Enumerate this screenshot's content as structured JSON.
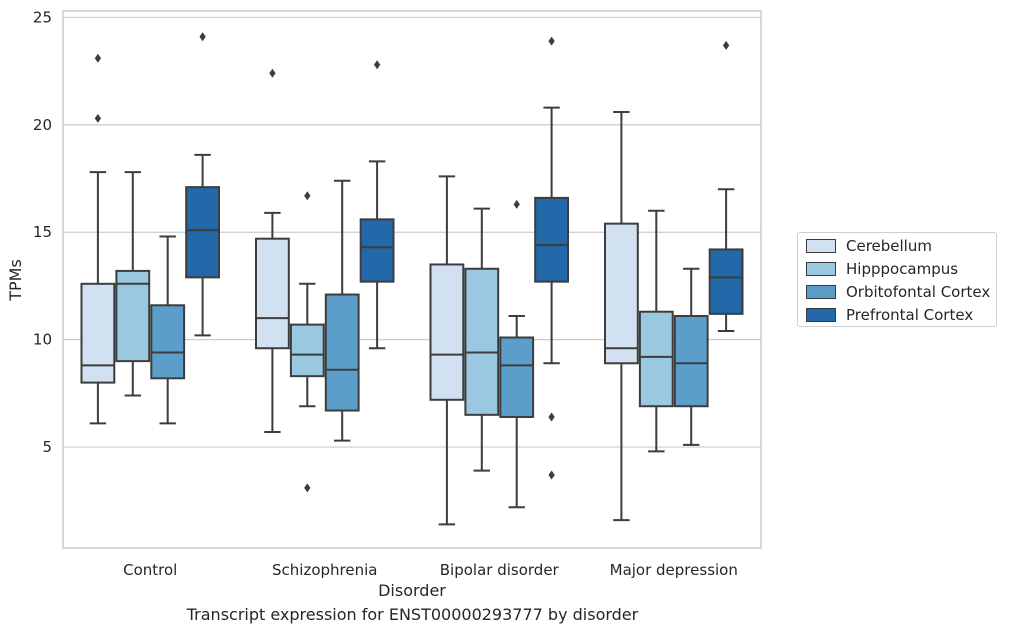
{
  "chart_data": {
    "type": "box",
    "title": "",
    "caption": "Transcript expression for ENST00000293777 by disorder",
    "xlabel": "Disorder",
    "ylabel": "TPMs",
    "ylim": [
      0.3,
      25.3
    ],
    "yticks": [
      5,
      10,
      15,
      20,
      25
    ],
    "grid": true,
    "legend_placement": "right",
    "categories": [
      "Control",
      "Schizophrenia",
      "Bipolar disorder",
      "Major depression"
    ],
    "series": [
      {
        "name": "Cerebellum",
        "color": "#d1e1f1",
        "boxes": [
          {
            "whisker_low": 6.1,
            "q1": 8.0,
            "median": 8.8,
            "q3": 12.6,
            "whisker_high": 17.8,
            "outliers": [
              20.3,
              23.1
            ]
          },
          {
            "whisker_low": 5.7,
            "q1": 9.6,
            "median": 11.0,
            "q3": 14.7,
            "whisker_high": 15.9,
            "outliers": [
              22.4
            ]
          },
          {
            "whisker_low": 1.4,
            "q1": 7.2,
            "median": 9.3,
            "q3": 13.5,
            "whisker_high": 17.6,
            "outliers": []
          },
          {
            "whisker_low": 1.6,
            "q1": 8.9,
            "median": 9.6,
            "q3": 15.4,
            "whisker_high": 20.6,
            "outliers": []
          }
        ]
      },
      {
        "name": "Hipppocampus",
        "color": "#9ac8e0",
        "boxes": [
          {
            "whisker_low": 7.4,
            "q1": 9.0,
            "median": 12.6,
            "q3": 13.2,
            "whisker_high": 17.8,
            "outliers": []
          },
          {
            "whisker_low": 6.9,
            "q1": 8.3,
            "median": 9.3,
            "q3": 10.7,
            "whisker_high": 12.6,
            "outliers": [
              3.1,
              16.7
            ]
          },
          {
            "whisker_low": 3.9,
            "q1": 6.5,
            "median": 9.4,
            "q3": 13.3,
            "whisker_high": 16.1,
            "outliers": []
          },
          {
            "whisker_low": 4.8,
            "q1": 6.9,
            "median": 9.2,
            "q3": 11.3,
            "whisker_high": 16.0,
            "outliers": []
          }
        ]
      },
      {
        "name": "Orbitofontal Cortex",
        "color": "#5a9ec9",
        "boxes": [
          {
            "whisker_low": 6.1,
            "q1": 8.2,
            "median": 9.4,
            "q3": 11.6,
            "whisker_high": 14.8,
            "outliers": []
          },
          {
            "whisker_low": 5.3,
            "q1": 6.7,
            "median": 8.6,
            "q3": 12.1,
            "whisker_high": 17.4,
            "outliers": []
          },
          {
            "whisker_low": 2.2,
            "q1": 6.4,
            "median": 8.8,
            "q3": 10.1,
            "whisker_high": 11.1,
            "outliers": [
              16.3
            ]
          },
          {
            "whisker_low": 5.1,
            "q1": 6.9,
            "median": 8.9,
            "q3": 11.1,
            "whisker_high": 13.3,
            "outliers": []
          }
        ]
      },
      {
        "name": "Prefrontal Cortex",
        "color": "#2368a8",
        "boxes": [
          {
            "whisker_low": 10.2,
            "q1": 12.9,
            "median": 15.1,
            "q3": 17.1,
            "whisker_high": 18.6,
            "outliers": [
              24.1
            ]
          },
          {
            "whisker_low": 9.6,
            "q1": 12.7,
            "median": 14.3,
            "q3": 15.6,
            "whisker_high": 18.3,
            "outliers": [
              22.8
            ]
          },
          {
            "whisker_low": 8.9,
            "q1": 12.7,
            "median": 14.4,
            "q3": 16.6,
            "whisker_high": 20.8,
            "outliers": [
              3.7,
              6.4,
              23.9
            ]
          },
          {
            "whisker_low": 10.4,
            "q1": 11.2,
            "median": 12.9,
            "q3": 14.2,
            "whisker_high": 17.0,
            "outliers": [
              23.7
            ]
          }
        ]
      }
    ]
  }
}
